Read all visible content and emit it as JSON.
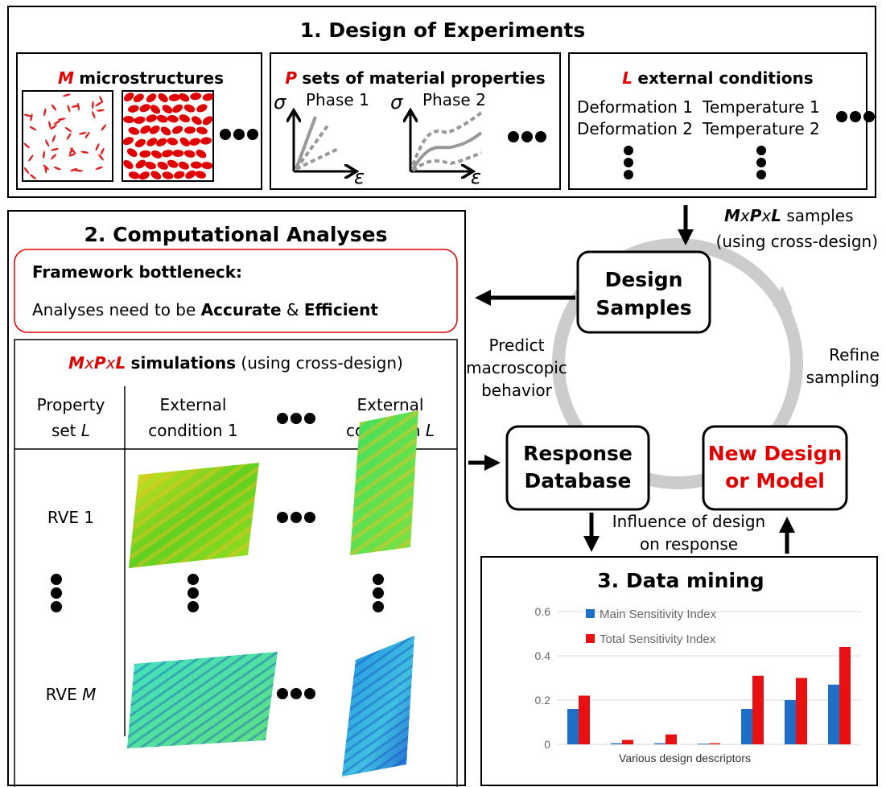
{
  "section1": {
    "title": "1. Design of Experiments",
    "microstructures": {
      "symbol": "M",
      "label": "microstructures"
    },
    "properties": {
      "symbol": "P",
      "label": "sets of material properties",
      "axis_y": "σ",
      "axis_x": "ε",
      "phase1": "Phase 1",
      "phase2": "Phase 2"
    },
    "conditions": {
      "symbol": "L",
      "label": "external conditions",
      "items": [
        "Deformation 1",
        "Temperature 1",
        "Deformation 2",
        "Temperature 2"
      ]
    }
  },
  "flow": {
    "samples_symbols": [
      "M",
      "x",
      "P",
      "x",
      "L"
    ],
    "samples_label": "samples",
    "samples_note": "(using cross-design)",
    "design_samples": [
      "Design",
      "Samples"
    ],
    "predict": [
      "Predict",
      "macroscopic",
      "behavior"
    ],
    "refine": [
      "Refine",
      "sampling"
    ],
    "response_database": [
      "Response",
      "Database"
    ],
    "new_design": [
      "New Design",
      "or Model"
    ],
    "influence": [
      "Influence of design",
      "on response"
    ]
  },
  "section2": {
    "title": "2. Computational Analyses",
    "bottleneck_title": "Framework bottleneck:",
    "bottleneck_text": [
      "Analyses need to be ",
      "Accurate",
      " & ",
      "Efficient"
    ],
    "sim_symbols": [
      "M",
      "x",
      "P",
      "x",
      "L"
    ],
    "sim_label": "simulations",
    "sim_note": "(using cross-design)",
    "table": {
      "header": [
        [
          "Property",
          "set ",
          "L"
        ],
        [
          "External",
          "condition 1"
        ],
        [
          "External",
          "condition ",
          "L"
        ]
      ],
      "rows": [
        "RVE 1"
      ],
      "rows_m": [
        "RVE ",
        "M"
      ]
    }
  },
  "section3": {
    "title": "3. Data mining",
    "chart": {
      "type": "bar",
      "xlabel": "Various design descriptors",
      "categories": [
        null,
        null,
        null,
        null,
        null,
        null,
        null
      ],
      "series": [
        {
          "name": "Main Sensitivity Index",
          "color": "#1f6fc8",
          "values": [
            0.16,
            0.005,
            0.005,
            0.003,
            0.16,
            0.2,
            0.27
          ]
        },
        {
          "name": "Total Sensitivity Index",
          "color": "#e81010",
          "values": [
            0.22,
            0.02,
            0.045,
            0.005,
            0.31,
            0.3,
            0.44
          ]
        }
      ],
      "ylim": [
        0,
        0.6
      ],
      "yticks": [
        0,
        0.2,
        0.4,
        0.6
      ],
      "grid": true
    }
  }
}
